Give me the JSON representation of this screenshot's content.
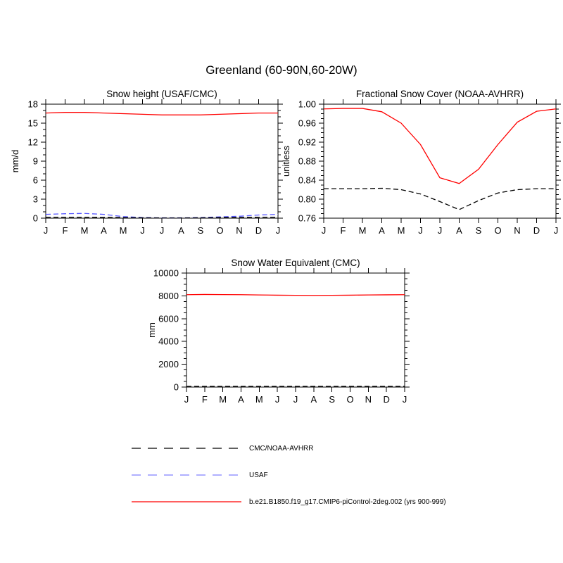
{
  "figure_title": "Greenland (60-90N,60-20W)",
  "months": [
    "J",
    "F",
    "M",
    "A",
    "M",
    "J",
    "J",
    "A",
    "S",
    "O",
    "N",
    "D",
    "J"
  ],
  "chart_data": [
    {
      "id": "snow-height",
      "type": "line",
      "title": "Snow height (USAF/CMC)",
      "ylabel": "mm/d",
      "ylim": [
        0,
        18
      ],
      "yticks": [
        0,
        3,
        6,
        9,
        12,
        15,
        18
      ],
      "ytick_labels": [
        "0",
        "3",
        "6",
        "9",
        "12",
        "15",
        "18"
      ],
      "yminor": 2,
      "categories": [
        "J",
        "F",
        "M",
        "A",
        "M",
        "J",
        "J",
        "A",
        "S",
        "O",
        "N",
        "D",
        "J"
      ],
      "series": [
        {
          "name": "b.e21.B1850.f19_g17.CMIP6-piControl-2deg.002",
          "color": "#ff0000",
          "style": "solid",
          "values": [
            16.6,
            16.7,
            16.7,
            16.6,
            16.5,
            16.4,
            16.3,
            16.3,
            16.3,
            16.4,
            16.5,
            16.6,
            16.6
          ]
        },
        {
          "name": "USAF",
          "color": "#5555ff",
          "style": "dashed",
          "values": [
            0.6,
            0.7,
            0.75,
            0.6,
            0.25,
            0.1,
            0.05,
            0.05,
            0.1,
            0.2,
            0.3,
            0.5,
            0.6
          ]
        },
        {
          "name": "CMC",
          "color": "#000000",
          "style": "dashed",
          "values": [
            0.15,
            0.15,
            0.15,
            0.12,
            0.1,
            0.05,
            0.03,
            0.03,
            0.05,
            0.1,
            0.12,
            0.15,
            0.15
          ]
        }
      ]
    },
    {
      "id": "fractional-snow-cover",
      "type": "line",
      "title": "Fractional Snow Cover (NOAA-AVHRR)",
      "ylabel": "unitless",
      "ylim": [
        0.76,
        1.0
      ],
      "yticks": [
        0.76,
        0.8,
        0.84,
        0.88,
        0.92,
        0.96,
        1.0
      ],
      "ytick_labels": [
        "0.76",
        "0.80",
        "0.84",
        "0.88",
        "0.92",
        "0.96",
        "1.00"
      ],
      "yminor": 3,
      "categories": [
        "J",
        "F",
        "M",
        "A",
        "M",
        "J",
        "J",
        "A",
        "S",
        "O",
        "N",
        "D",
        "J"
      ],
      "series": [
        {
          "name": "b.e21.B1850.f19_g17.CMIP6-piControl-2deg.002",
          "color": "#ff0000",
          "style": "solid",
          "values": [
            0.99,
            0.991,
            0.991,
            0.984,
            0.96,
            0.915,
            0.845,
            0.833,
            0.863,
            0.915,
            0.962,
            0.985,
            0.99
          ]
        },
        {
          "name": "NOAA-AVHRR",
          "color": "#000000",
          "style": "dashed",
          "values": [
            0.822,
            0.822,
            0.822,
            0.823,
            0.82,
            0.811,
            0.795,
            0.778,
            0.797,
            0.813,
            0.82,
            0.822,
            0.822
          ]
        }
      ]
    },
    {
      "id": "snow-water-equivalent",
      "type": "line",
      "title": "Snow Water Equivalent (CMC)",
      "ylabel": "mm",
      "ylim": [
        0,
        10000
      ],
      "yticks": [
        0,
        2000,
        4000,
        6000,
        8000,
        10000
      ],
      "ytick_labels": [
        "0",
        "2000",
        "4000",
        "6000",
        "8000",
        "10000"
      ],
      "yminor": 3,
      "categories": [
        "J",
        "F",
        "M",
        "A",
        "M",
        "J",
        "J",
        "A",
        "S",
        "O",
        "N",
        "D",
        "J"
      ],
      "series": [
        {
          "name": "b.e21.B1850.f19_g17.CMIP6-piControl-2deg.002",
          "color": "#ff0000",
          "style": "solid",
          "values": [
            8100,
            8120,
            8110,
            8100,
            8080,
            8060,
            8050,
            8040,
            8050,
            8060,
            8080,
            8090,
            8100
          ]
        },
        {
          "name": "CMC",
          "color": "#000000",
          "style": "dashed",
          "values": [
            60,
            60,
            60,
            60,
            60,
            60,
            60,
            60,
            60,
            60,
            60,
            60,
            60
          ]
        }
      ]
    }
  ],
  "legend": [
    {
      "label": "CMC/NOAA-AVHRR",
      "color": "#000000",
      "style": "dashed"
    },
    {
      "label": "USAF",
      "color": "#8080ff",
      "style": "dashed"
    },
    {
      "label": "b.e21.B1850.f19_g17.CMIP6-piControl-2deg.002 (yrs 900-999)",
      "color": "#ff0000",
      "style": "solid"
    }
  ]
}
